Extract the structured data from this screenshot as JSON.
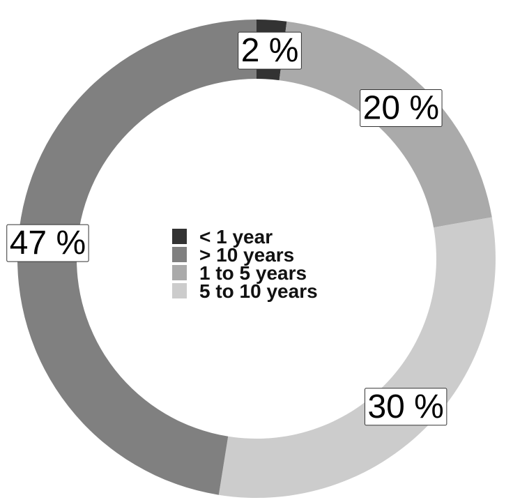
{
  "chart_data": {
    "type": "pie",
    "variant": "donut",
    "start_angle_deg": 0,
    "direction": "clockwise",
    "slices": [
      {
        "label": "< 1 year",
        "value": 2,
        "display": "2 %",
        "color": "#333333"
      },
      {
        "label": "1 to 5 years",
        "value": 20,
        "display": "20 %",
        "color": "#aaaaaa"
      },
      {
        "label": "5 to 10 years",
        "value": 30,
        "display": "30 %",
        "color": "#cccccc"
      },
      {
        "label": "> 10 years",
        "value": 47,
        "display": "47 %",
        "color": "#808080"
      }
    ],
    "legend": {
      "placement": "center",
      "entries": [
        {
          "label": "< 1 year",
          "color": "#333333"
        },
        {
          "label": "> 10 years",
          "color": "#808080"
        },
        {
          "label": "1 to 5 years",
          "color": "#aaaaaa"
        },
        {
          "label": "5 to 10 years",
          "color": "#cccccc"
        }
      ]
    }
  }
}
